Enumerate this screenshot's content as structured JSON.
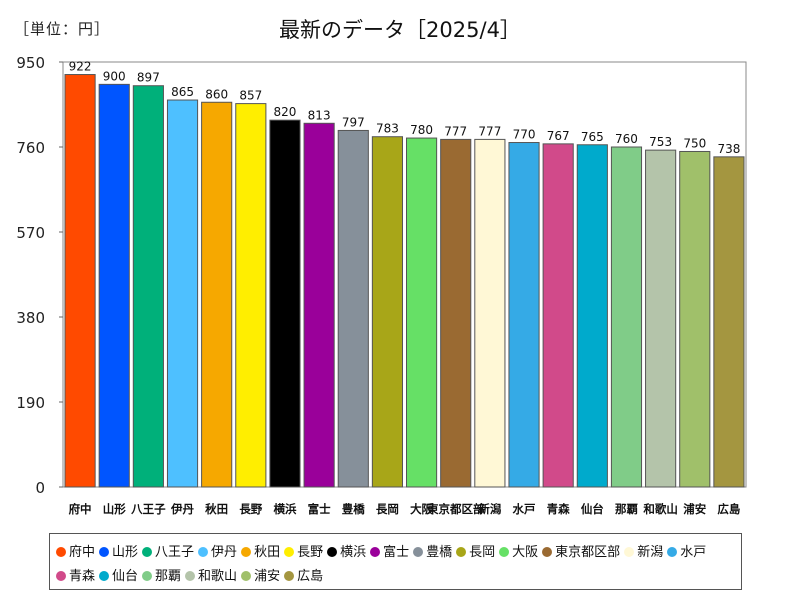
{
  "unit_label": "［単位：円］",
  "chart_data": {
    "type": "bar",
    "title": "最新のデータ［2025/4］",
    "categories": [
      "府中",
      "山形",
      "八王子",
      "伊丹",
      "秋田",
      "長野",
      "横浜",
      "富士",
      "豊橋",
      "長岡",
      "大阪",
      "東京都区部",
      "新潟",
      "水戸",
      "青森",
      "仙台",
      "那覇",
      "和歌山",
      "浦安",
      "広島"
    ],
    "values": [
      922,
      900,
      897,
      865,
      860,
      857,
      820,
      813,
      797,
      783,
      780,
      777,
      777,
      770,
      767,
      765,
      760,
      753,
      750,
      738
    ],
    "colors": [
      "#ff4a00",
      "#0055ff",
      "#00b07a",
      "#4ec0ff",
      "#f6a800",
      "#ffee00",
      "#000000",
      "#9a009a",
      "#86909a",
      "#a8a618",
      "#66e066",
      "#9a6a32",
      "#fff8d6",
      "#35aae6",
      "#d14a8a",
      "#00aacc",
      "#80cc88",
      "#b4c4aa",
      "#a0c06a",
      "#a49640"
    ],
    "xlabel": "",
    "ylabel": "",
    "ylim": [
      0,
      950
    ],
    "yticks": [
      0,
      190,
      380,
      570,
      760,
      950
    ],
    "grid": false,
    "legend_position": "bottom"
  }
}
